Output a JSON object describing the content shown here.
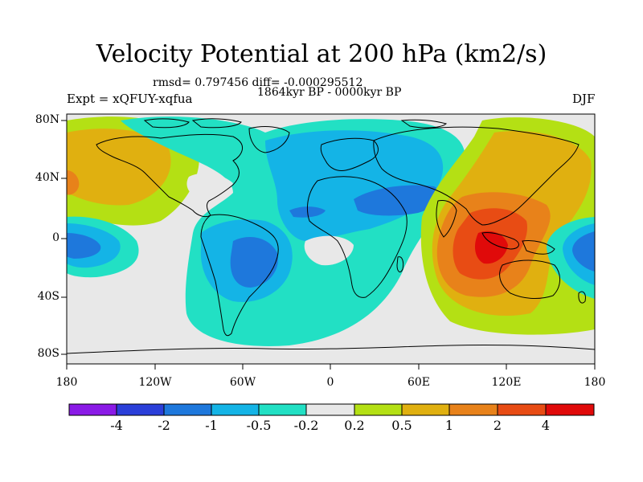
{
  "title": "Velocity Potential at 200 hPa (km2/s)",
  "stats": "rmsd= 0.797456 diff= -0.000295512",
  "period": "1864kyr BP - 0000kyr BP",
  "experiment": "Expt = xQFUY-xqfua",
  "season": "DJF",
  "map": {
    "lat_range": [
      -90,
      90
    ],
    "lon_range": [
      -180,
      180
    ],
    "lat_ticks": [
      {
        "value": 80,
        "label": "80N"
      },
      {
        "value": 40,
        "label": "40N"
      },
      {
        "value": 0,
        "label": "0"
      },
      {
        "value": -40,
        "label": "40S"
      },
      {
        "value": -80,
        "label": "80S"
      }
    ],
    "lon_ticks": [
      {
        "value": -180,
        "label": "180"
      },
      {
        "value": -120,
        "label": "120W"
      },
      {
        "value": -60,
        "label": "60W"
      },
      {
        "value": 0,
        "label": "0"
      },
      {
        "value": 60,
        "label": "60E"
      },
      {
        "value": 120,
        "label": "120E"
      },
      {
        "value": 180,
        "label": "180"
      }
    ]
  },
  "colorbar": {
    "levels": [
      "-4",
      "-2",
      "-1",
      "-0.5",
      "-0.2",
      "0.2",
      "0.5",
      "1",
      "2",
      "4"
    ],
    "colors": [
      "#8a1ae6",
      "#2b3fd9",
      "#1e78dc",
      "#14b4e6",
      "#22e0c4",
      "#e8e8e8",
      "#b4e014",
      "#e0b010",
      "#e8821a",
      "#e84c14",
      "#e00a0a"
    ]
  }
}
